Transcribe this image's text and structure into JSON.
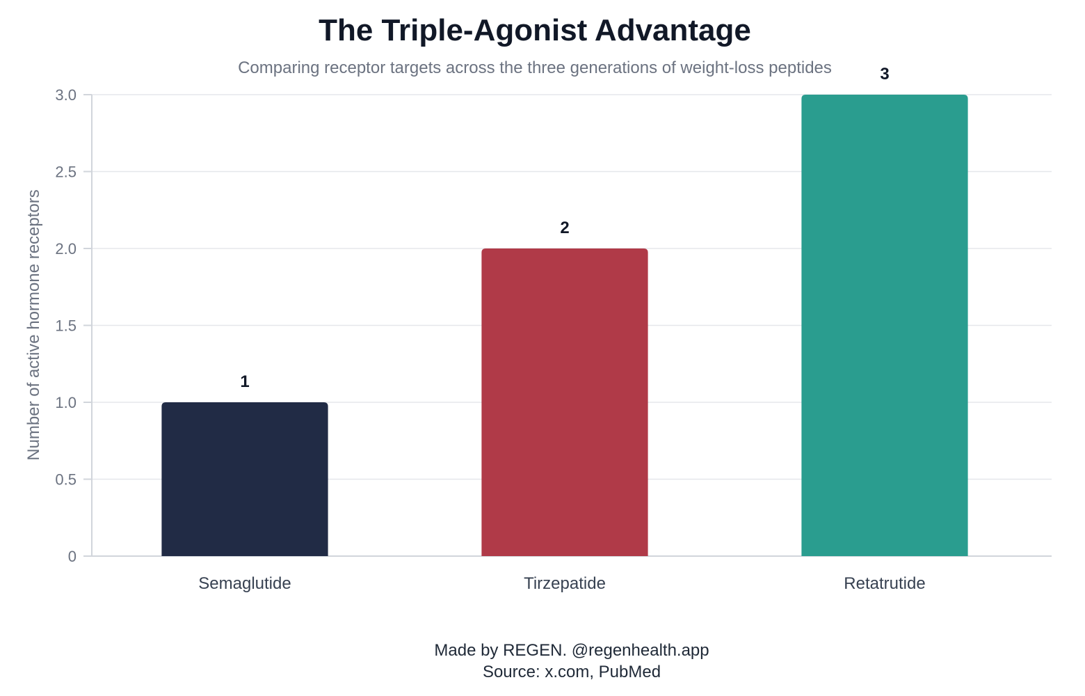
{
  "chart_data": {
    "type": "bar",
    "title": "The Triple-Agonist Advantage",
    "subtitle": "Comparing receptor targets across the three generations of weight-loss peptides",
    "xlabel": "",
    "ylabel": "Number of active hormone receptors",
    "categories": [
      "Semaglutide",
      "Tirzepatide",
      "Retatrutide"
    ],
    "values": [
      1,
      2,
      3
    ],
    "data_labels": [
      "1",
      "2",
      "3"
    ],
    "colors": [
      "#212b45",
      "#b03a48",
      "#2a9d8f"
    ],
    "ylim": [
      0,
      3
    ],
    "yticks": [
      0,
      0.5,
      1,
      1.5,
      2,
      2.5,
      3
    ],
    "ytick_labels": [
      "0",
      "0.5",
      "1.0",
      "1.5",
      "2.0",
      "2.5",
      "3.0"
    ],
    "grid": true,
    "legend": "none"
  },
  "footer": {
    "credit": "Made by REGEN. @regenhealth.app",
    "source": "Source: x.com, PubMed"
  }
}
